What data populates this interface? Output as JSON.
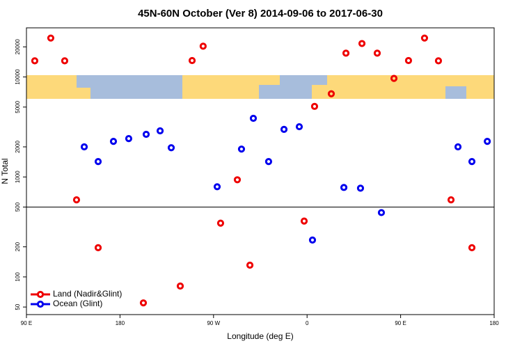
{
  "chart_data": {
    "type": "scatter",
    "title": "45N-60N October (Ver 8)   2014-09-06 to 2017-06-30",
    "x_label": "Longitude (deg E)",
    "y_label": "N Total",
    "xlim": [
      90,
      540
    ],
    "xticks": [
      {
        "value": 90,
        "label": "90 E"
      },
      {
        "value": 180,
        "label": "180"
      },
      {
        "value": 270,
        "label": "90 W"
      },
      {
        "value": 360,
        "label": "0"
      },
      {
        "value": 450,
        "label": "90 E"
      },
      {
        "value": 540,
        "label": "180"
      }
    ],
    "ylim": [
      42,
      31000
    ],
    "yticks": [
      50,
      100,
      200,
      500,
      1000,
      2000,
      5000,
      10000,
      20000
    ],
    "log_y": true,
    "hline": 500,
    "legend": "bottomleft",
    "series": [
      {
        "name": "Land (Nadir&Glint)",
        "color": "#ee0000",
        "x": [
          98,
          113.4,
          126.8,
          138.2,
          159,
          202.5,
          238,
          249.4,
          260,
          276.8,
          292.9,
          305,
          357.2,
          367.2,
          383.3,
          397.4,
          412.8,
          427.5,
          443.6,
          457.6,
          473,
          486.4,
          498.5,
          518.6
        ],
        "values": [
          14500,
          24500,
          14500,
          590,
          196,
          55,
          81,
          14600,
          20300,
          345,
          937,
          131,
          362,
          5080,
          6790,
          17300,
          21600,
          17300,
          9680,
          14600,
          24500,
          14500,
          590,
          196
        ]
      },
      {
        "name": "Ocean (Glint)",
        "color": "#0000ee",
        "x": [
          145.6,
          159,
          173.7,
          188.4,
          205.2,
          218.6,
          229.3,
          273.5,
          296.9,
          308.3,
          323,
          337.8,
          352.5,
          365.2,
          395.4,
          411.4,
          431.5,
          505.2,
          518.6,
          533.4
        ],
        "values": [
          2000,
          1425,
          2270,
          2420,
          2670,
          2890,
          1960,
          798,
          1900,
          3860,
          1425,
          2990,
          3180,
          234,
          785,
          772,
          440,
          2000,
          1425,
          2270
        ]
      }
    ]
  }
}
